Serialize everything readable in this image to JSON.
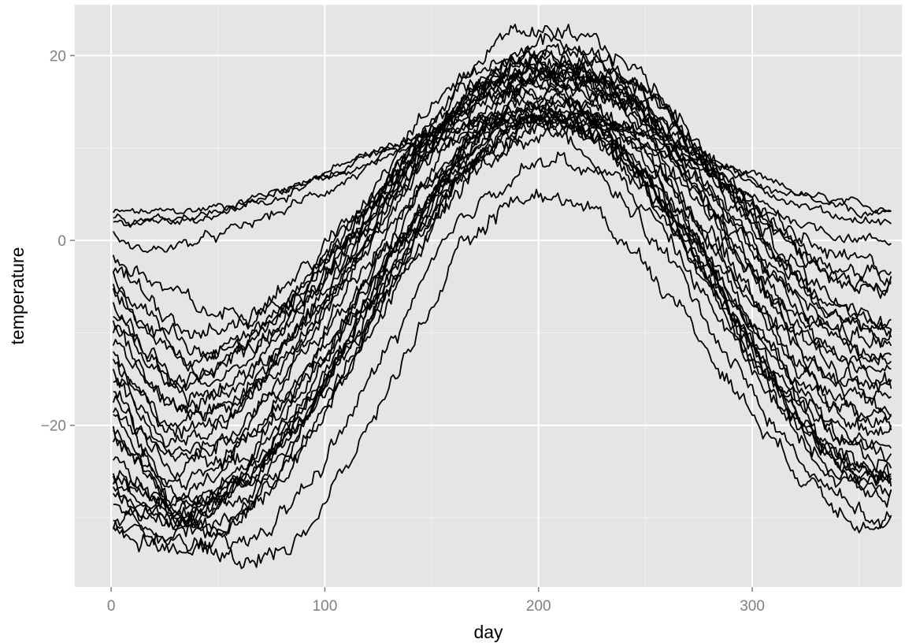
{
  "chart_data": {
    "type": "line",
    "title": "",
    "xlabel": "day",
    "ylabel": "temperature",
    "xlim": [
      -17,
      370
    ],
    "ylim": [
      -37.5,
      25.5
    ],
    "x_ticks": [
      0,
      100,
      200,
      300
    ],
    "x_tick_labels": [
      "0",
      "100",
      "200",
      "300"
    ],
    "y_ticks": [
      -20,
      0,
      20
    ],
    "y_tick_labels": [
      "−20",
      "0",
      "20"
    ],
    "x_minor_ticks": [
      50,
      150,
      250,
      350
    ],
    "y_minor_ticks": [
      -30,
      -10,
      10
    ],
    "grid": true,
    "legend": "none",
    "colors": {
      "panel": "#e5e5e5",
      "grid_major": "#ffffff",
      "grid_minor": "#f2f2f2",
      "line": "#000000",
      "tick_text": "#7f7f7f"
    },
    "series_description": "35 station temperature curves over days 1-365; each listed by its approximate seasonal profile",
    "day_range": [
      1,
      365
    ],
    "series": [
      {
        "start": 3.0,
        "min": 3.0,
        "min_day": 20,
        "peak": 13.5,
        "peak_day": 200,
        "end": 3.5,
        "noise": 0.5
      },
      {
        "start": 2.5,
        "min": 2.5,
        "min_day": 20,
        "peak": 12.8,
        "peak_day": 205,
        "end": 2.8,
        "noise": 0.5
      },
      {
        "start": 2.0,
        "min": 2.0,
        "min_day": 15,
        "peak": 14.0,
        "peak_day": 205,
        "end": 2.0,
        "noise": 0.5
      },
      {
        "start": 0.5,
        "min": -1.0,
        "min_day": 10,
        "peak": 13.0,
        "peak_day": 200,
        "end": 0.0,
        "noise": 0.6
      },
      {
        "start": -2.0,
        "min": -8.0,
        "min_day": 45,
        "peak": 17.5,
        "peak_day": 200,
        "end": -3.0,
        "noise": 1.0
      },
      {
        "start": -3.0,
        "min": -10.0,
        "min_day": 40,
        "peak": 18.0,
        "peak_day": 205,
        "end": -4.0,
        "noise": 1.0
      },
      {
        "start": -4.0,
        "min": -12.0,
        "min_day": 40,
        "peak": 19.0,
        "peak_day": 200,
        "end": -5.0,
        "noise": 1.0
      },
      {
        "start": -5.0,
        "min": -13.0,
        "min_day": 35,
        "peak": 20.0,
        "peak_day": 210,
        "end": -6.0,
        "noise": 1.0
      },
      {
        "start": -6.0,
        "min": -14.0,
        "min_day": 35,
        "peak": 21.0,
        "peak_day": 205,
        "end": -8.0,
        "noise": 1.0
      },
      {
        "start": -7.0,
        "min": -15.0,
        "min_day": 30,
        "peak": 22.0,
        "peak_day": 200,
        "end": -9.0,
        "noise": 1.0
      },
      {
        "start": -8.0,
        "min": -16.0,
        "min_day": 30,
        "peak": 21.5,
        "peak_day": 215,
        "end": -10.0,
        "noise": 1.0
      },
      {
        "start": -9.0,
        "min": -17.0,
        "min_day": 35,
        "peak": 20.5,
        "peak_day": 210,
        "end": -10.0,
        "noise": 1.0
      },
      {
        "start": -10.0,
        "min": -18.0,
        "min_day": 30,
        "peak": 20.0,
        "peak_day": 200,
        "end": -11.0,
        "noise": 1.0
      },
      {
        "start": -11.0,
        "min": -19.0,
        "min_day": 30,
        "peak": 19.5,
        "peak_day": 205,
        "end": -12.0,
        "noise": 1.0
      },
      {
        "start": -12.0,
        "min": -20.0,
        "min_day": 25,
        "peak": 19.0,
        "peak_day": 210,
        "end": -13.0,
        "noise": 1.0
      },
      {
        "start": -13.0,
        "min": -21.0,
        "min_day": 30,
        "peak": 18.5,
        "peak_day": 200,
        "end": -14.0,
        "noise": 1.0
      },
      {
        "start": -14.0,
        "min": -22.0,
        "min_day": 25,
        "peak": 18.0,
        "peak_day": 205,
        "end": -15.0,
        "noise": 1.0
      },
      {
        "start": -15.0,
        "min": -23.0,
        "min_day": 30,
        "peak": 17.5,
        "peak_day": 210,
        "end": -16.0,
        "noise": 1.0
      },
      {
        "start": -16.0,
        "min": -24.0,
        "min_day": 25,
        "peak": 17.0,
        "peak_day": 200,
        "end": -17.0,
        "noise": 1.0
      },
      {
        "start": -17.0,
        "min": -25.0,
        "min_day": 30,
        "peak": 16.0,
        "peak_day": 205,
        "end": -19.0,
        "noise": 1.0
      },
      {
        "start": -18.0,
        "min": -26.0,
        "min_day": 25,
        "peak": 15.0,
        "peak_day": 210,
        "end": -20.0,
        "noise": 1.0
      },
      {
        "start": -19.0,
        "min": -27.0,
        "min_day": 30,
        "peak": 14.5,
        "peak_day": 200,
        "end": -21.0,
        "noise": 1.0
      },
      {
        "start": -20.0,
        "min": -28.0,
        "min_day": 28,
        "peak": 14.0,
        "peak_day": 205,
        "end": -22.0,
        "noise": 1.0
      },
      {
        "start": -21.0,
        "min": -28.5,
        "min_day": 30,
        "peak": 13.5,
        "peak_day": 210,
        "end": -23.0,
        "noise": 1.0
      },
      {
        "start": -22.0,
        "min": -29.0,
        "min_day": 28,
        "peak": 13.0,
        "peak_day": 200,
        "end": -24.0,
        "noise": 1.0
      },
      {
        "start": -24.0,
        "min": -29.5,
        "min_day": 30,
        "peak": 12.5,
        "peak_day": 205,
        "end": -25.0,
        "noise": 1.0
      },
      {
        "start": -25.0,
        "min": -30.0,
        "min_day": 28,
        "peak": 12.0,
        "peak_day": 210,
        "end": -26.0,
        "noise": 1.0
      },
      {
        "start": -26.0,
        "min": -30.0,
        "min_day": 30,
        "peak": 11.5,
        "peak_day": 200,
        "end": -27.0,
        "noise": 1.0
      },
      {
        "start": -27.0,
        "min": -30.5,
        "min_day": 35,
        "peak": 13.0,
        "peak_day": 205,
        "end": -25.0,
        "noise": 1.0
      },
      {
        "start": -28.0,
        "min": -31.0,
        "min_day": 40,
        "peak": 14.0,
        "peak_day": 210,
        "end": -26.0,
        "noise": 1.0
      },
      {
        "start": -29.0,
        "min": -31.0,
        "min_day": 45,
        "peak": 16.0,
        "peak_day": 205,
        "end": -25.0,
        "noise": 1.0
      },
      {
        "start": -30.0,
        "min": -32.0,
        "min_day": 35,
        "peak": 15.0,
        "peak_day": 200,
        "end": -27.5,
        "noise": 1.0
      },
      {
        "start": -31.0,
        "min": -33.5,
        "min_day": 50,
        "peak": 8.5,
        "peak_day": 205,
        "end": -30.0,
        "noise": 1.0
      },
      {
        "start": -31.5,
        "min": -34.5,
        "min_day": 65,
        "peak": 5.0,
        "peak_day": 200,
        "end": -30.5,
        "noise": 1.0
      },
      {
        "start": -26.5,
        "min": -29.0,
        "min_day": 30,
        "peak": 18.0,
        "peak_day": 215,
        "end": -18.0,
        "noise": 1.0
      }
    ]
  }
}
